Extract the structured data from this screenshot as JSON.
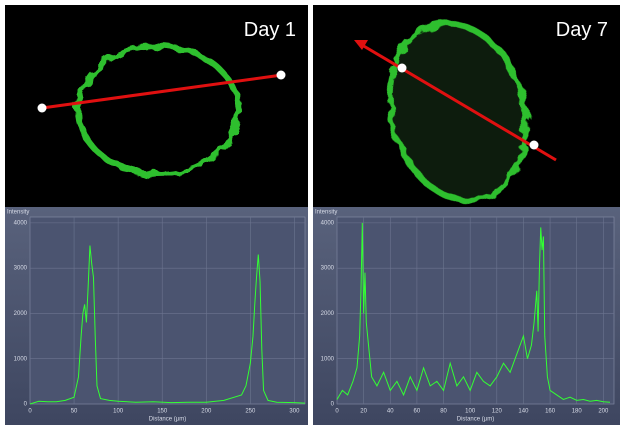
{
  "chart_data": [
    {
      "type": "line",
      "title": "Day 1",
      "ylabel": "Intensity",
      "xlabel": "Distance (µm)",
      "x": [
        0,
        10,
        20,
        30,
        40,
        50,
        55,
        58,
        60,
        62,
        64,
        66,
        68,
        70,
        72,
        74,
        76,
        80,
        90,
        100,
        120,
        140,
        160,
        180,
        200,
        220,
        240,
        245,
        250,
        253,
        255,
        257,
        259,
        261,
        263,
        265,
        270,
        280,
        300,
        312
      ],
      "values": [
        0,
        60,
        50,
        50,
        80,
        150,
        600,
        1500,
        2000,
        2200,
        1800,
        2600,
        3500,
        3100,
        2800,
        1500,
        400,
        120,
        80,
        60,
        40,
        50,
        30,
        40,
        40,
        80,
        200,
        400,
        900,
        1500,
        2200,
        2800,
        3300,
        2700,
        1200,
        300,
        80,
        40,
        30,
        20
      ],
      "color": "#33ff33",
      "xlim": [
        0,
        312
      ],
      "ylim": [
        0,
        4130
      ],
      "xticks": [
        0,
        50,
        100,
        150,
        200,
        250,
        300
      ],
      "yticks": [
        0,
        1000,
        2000,
        3000,
        4000
      ],
      "grid": true
    },
    {
      "type": "line",
      "title": "Day 7",
      "ylabel": "Intensity",
      "xlabel": "Distance (µm)",
      "x": [
        0,
        4,
        8,
        12,
        15,
        17,
        18,
        19,
        20,
        21,
        22,
        24,
        26,
        30,
        35,
        40,
        45,
        50,
        55,
        60,
        65,
        70,
        75,
        80,
        85,
        90,
        95,
        100,
        105,
        110,
        115,
        120,
        125,
        130,
        135,
        140,
        143,
        146,
        148,
        150,
        151,
        152,
        153,
        154,
        155,
        156,
        158,
        160,
        165,
        170,
        175,
        180,
        185,
        190,
        195,
        200,
        205
      ],
      "values": [
        100,
        300,
        200,
        500,
        800,
        1500,
        2500,
        4000,
        2000,
        2900,
        1800,
        1200,
        600,
        400,
        700,
        300,
        500,
        200,
        600,
        300,
        800,
        400,
        500,
        300,
        900,
        400,
        600,
        300,
        700,
        500,
        400,
        600,
        900,
        700,
        1100,
        1500,
        1000,
        1300,
        1800,
        2500,
        1600,
        3000,
        3900,
        3400,
        3700,
        1500,
        600,
        300,
        200,
        100,
        150,
        80,
        100,
        60,
        80,
        50,
        40
      ],
      "color": "#33ff33",
      "xlim": [
        0,
        208
      ],
      "ylim": [
        0,
        4130
      ],
      "xticks": [
        0,
        20,
        40,
        60,
        80,
        100,
        120,
        140,
        160,
        180,
        200
      ],
      "yticks": [
        0,
        1000,
        2000,
        3000,
        4000
      ],
      "grid": true
    }
  ]
}
